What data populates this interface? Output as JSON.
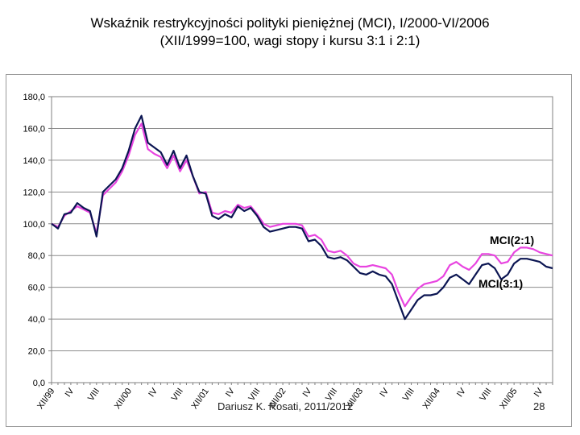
{
  "slide": {
    "title_line1": "Wskaźnik restrykcyjności polityki pieniężnej (MCI), I/2000-VI/2006",
    "title_line2": "(XII/1999=100, wagi stopy i kursu 3:1 i 2:1)",
    "footer": "Dariusz K. Rosati, 2011/2012",
    "page_number": "28"
  },
  "chart_data": {
    "type": "line",
    "title": "",
    "xlabel": "",
    "ylabel": "",
    "ylim": [
      0,
      180
    ],
    "yticks": [
      "0,0",
      "20,0",
      "40,0",
      "60,0",
      "80,0",
      "100,0",
      "120,0",
      "140,0",
      "160,0",
      "180,0"
    ],
    "grid": true,
    "x_count": 79,
    "x_ticks": [
      {
        "index": 0,
        "label": "XII/99"
      },
      {
        "index": 3,
        "label": "IV"
      },
      {
        "index": 7,
        "label": "VIII"
      },
      {
        "index": 12,
        "label": "XII/00"
      },
      {
        "index": 16,
        "label": "IV"
      },
      {
        "index": 20,
        "label": "VIII"
      },
      {
        "index": 24,
        "label": "XII/01"
      },
      {
        "index": 28,
        "label": "IV"
      },
      {
        "index": 32,
        "label": "VIII"
      },
      {
        "index": 36,
        "label": "XII/02"
      },
      {
        "index": 40,
        "label": "IV"
      },
      {
        "index": 44,
        "label": "VIII"
      },
      {
        "index": 48,
        "label": "XII/03"
      },
      {
        "index": 52,
        "label": "IV"
      },
      {
        "index": 56,
        "label": "VIII"
      },
      {
        "index": 60,
        "label": "XII/04"
      },
      {
        "index": 64,
        "label": "IV"
      },
      {
        "index": 68,
        "label": "VIII"
      },
      {
        "index": 72,
        "label": "XII/05"
      },
      {
        "index": 76,
        "label": "IV"
      }
    ],
    "series": [
      {
        "name": "MCI(3:1)",
        "color": "#0b1552",
        "values": [
          100,
          97,
          106,
          107,
          113,
          110,
          108,
          92,
          120,
          124,
          128,
          135,
          146,
          160,
          168,
          151,
          148,
          145,
          137,
          146,
          135,
          143,
          130,
          120,
          119,
          105,
          103,
          106,
          104,
          111,
          108,
          110,
          105,
          98,
          95,
          96,
          97,
          98,
          98,
          97,
          89,
          90,
          86,
          79,
          78,
          79,
          77,
          73,
          69,
          68,
          70,
          68,
          67,
          62,
          51,
          40,
          46,
          52,
          55,
          55,
          56,
          60,
          66,
          68,
          65,
          62,
          68,
          74,
          75,
          72,
          65,
          68,
          75,
          78,
          78,
          77,
          76,
          73,
          72
        ]
      },
      {
        "name": "MCI(2:1)",
        "color": "#e844e0",
        "values": [
          100,
          98,
          105,
          108,
          111,
          109,
          107,
          94,
          118,
          122,
          126,
          133,
          143,
          156,
          163,
          147,
          144,
          142,
          135,
          143,
          133,
          140,
          130,
          119,
          120,
          107,
          106,
          108,
          107,
          112,
          110,
          111,
          106,
          100,
          98,
          99,
          100,
          100,
          100,
          99,
          92,
          93,
          90,
          83,
          82,
          83,
          80,
          75,
          73,
          73,
          74,
          73,
          72,
          68,
          57,
          48,
          54,
          59,
          62,
          63,
          64,
          67,
          74,
          76,
          73,
          71,
          75,
          81,
          81,
          80,
          75,
          76,
          82,
          85,
          85,
          84,
          82,
          81,
          80
        ]
      }
    ],
    "annotations": [
      {
        "text": "MCI(2:1)",
        "series": "MCI(2:1)"
      },
      {
        "text": "MCI(3:1)",
        "series": "MCI(3:1)"
      }
    ]
  }
}
